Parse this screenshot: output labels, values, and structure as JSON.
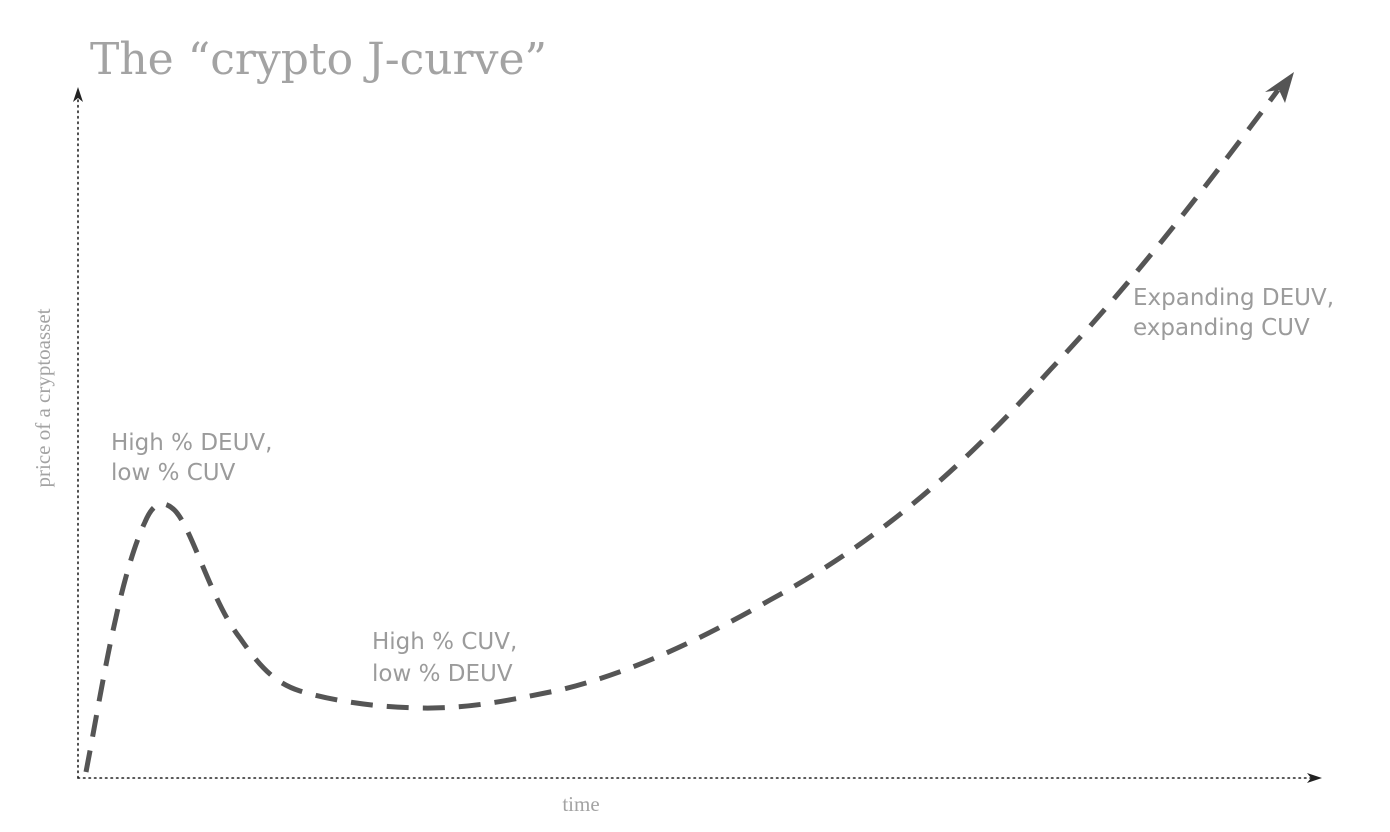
{
  "title": "The “crypto J-curve”",
  "axes": {
    "x_label": "time",
    "y_label": "price of a cryptoasset"
  },
  "annotations": {
    "peak": {
      "line1": "High % DEUV,",
      "line2": "low % CUV"
    },
    "trough": {
      "line1": "High % CUV,",
      "line2": "low % DEUV"
    },
    "growth": {
      "line1": "Expanding DEUV,",
      "line2": "expanding CUV"
    }
  },
  "colors": {
    "curve": "#555555",
    "axis": "#222222",
    "text": "#a3a3a3"
  }
}
